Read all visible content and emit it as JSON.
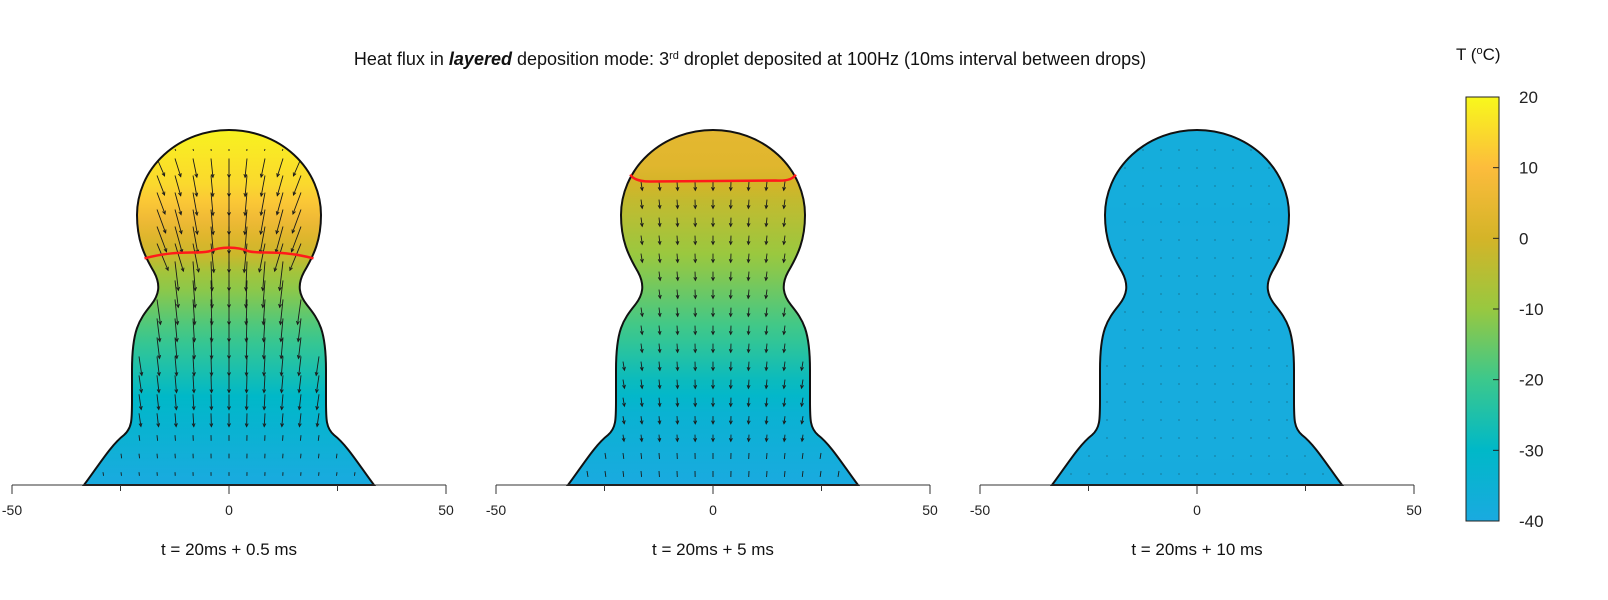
{
  "chart_data": {
    "type": "heatmap",
    "title_parts": {
      "prefix": "Heat flux in ",
      "emphasis": "layered",
      "middle": " deposition mode: 3",
      "superscript": "rd",
      "suffix": " droplet deposited at 100Hz (10ms interval between drops)"
    },
    "colorbar": {
      "label_prefix": "T (",
      "label_sup": "o",
      "label_suffix": "C)",
      "range": [
        -40,
        20
      ],
      "ticks": [
        20,
        10,
        0,
        -10,
        -20,
        -30,
        -40
      ],
      "colormap": "parula",
      "stops": [
        {
          "value": -40,
          "color": "#1aaae0"
        },
        {
          "value": -30,
          "color": "#00b8c8"
        },
        {
          "value": -20,
          "color": "#3cc88c"
        },
        {
          "value": -10,
          "color": "#98c840"
        },
        {
          "value": 0,
          "color": "#d4b428"
        },
        {
          "value": 10,
          "color": "#fcbc3c"
        },
        {
          "value": 20,
          "color": "#f8f81c"
        }
      ]
    },
    "x_axis": {
      "range": [
        -50,
        50
      ],
      "major_ticks": [
        -50,
        0,
        50
      ],
      "minor_ticks": [
        -25,
        25
      ],
      "tick_labels": [
        "-50",
        "0",
        "50"
      ]
    },
    "front_color": "#ff1a1a",
    "panels": [
      {
        "caption": "t =  20ms + 0.5 ms",
        "temperature_profile": [
          [
            0,
            -40
          ],
          [
            0.25,
            -30
          ],
          [
            0.45,
            -18
          ],
          [
            0.6,
            -8
          ],
          [
            0.66,
            0
          ],
          [
            0.72,
            4
          ],
          [
            0.82,
            14
          ],
          [
            1.0,
            19
          ]
        ],
        "front_height_fraction": 0.66,
        "front_wavy": true,
        "arrow_magnitude": 1.0,
        "arrows_visible": true
      },
      {
        "caption": "t =  20ms + 5 ms",
        "temperature_profile": [
          [
            0,
            -40
          ],
          [
            0.2,
            -34
          ],
          [
            0.4,
            -22
          ],
          [
            0.6,
            -12
          ],
          [
            0.8,
            -3
          ],
          [
            0.9,
            3
          ],
          [
            1.0,
            4
          ]
        ],
        "front_height_fraction": 0.86,
        "front_wavy": false,
        "arrow_magnitude": 0.55,
        "arrows_visible": true
      },
      {
        "caption": "t =  20ms + 10 ms",
        "temperature_profile": [
          [
            0,
            -39
          ],
          [
            1.0,
            -38
          ]
        ],
        "front_height_fraction": null,
        "front_wavy": false,
        "arrow_magnitude": 0.0,
        "arrows_visible": true
      }
    ]
  }
}
